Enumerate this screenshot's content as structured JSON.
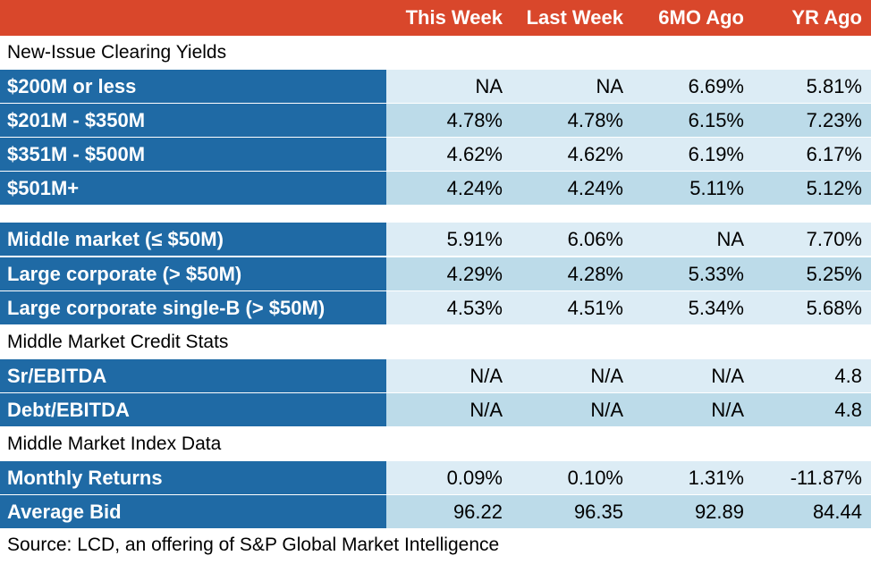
{
  "header": {
    "columns": [
      "This Week",
      "Last Week",
      "6MO Ago",
      "YR Ago"
    ]
  },
  "sections": {
    "new_issue": "New-Issue Clearing Yields",
    "credit_stats": "Middle Market Credit Stats",
    "index_data": "Middle Market Index Data"
  },
  "rows": [
    {
      "label": "$200M or less",
      "values": [
        "NA",
        "NA",
        "6.69%",
        "5.81%"
      ]
    },
    {
      "label": "$201M - $350M",
      "values": [
        "4.78%",
        "4.78%",
        "6.15%",
        "7.23%"
      ]
    },
    {
      "label": "$351M - $500M",
      "values": [
        "4.62%",
        "4.62%",
        "6.19%",
        "6.17%"
      ]
    },
    {
      "label": "$501M+",
      "values": [
        "4.24%",
        "4.24%",
        "5.11%",
        "5.12%"
      ]
    },
    {
      "label": "Middle market (≤ $50M)",
      "values": [
        "5.91%",
        "6.06%",
        "NA",
        "7.70%"
      ]
    },
    {
      "label": "Large corporate (> $50M)",
      "values": [
        "4.29%",
        "4.28%",
        "5.33%",
        "5.25%"
      ]
    },
    {
      "label": "Large corporate single-B (> $50M)",
      "values": [
        "4.53%",
        "4.51%",
        "5.34%",
        "5.68%"
      ]
    },
    {
      "label": "Sr/EBITDA",
      "values": [
        "N/A",
        "N/A",
        "N/A",
        "4.8"
      ]
    },
    {
      "label": "Debt/EBITDA",
      "values": [
        "N/A",
        "N/A",
        "N/A",
        "4.8"
      ]
    },
    {
      "label": "Monthly Returns",
      "values": [
        "0.09%",
        "0.10%",
        "1.31%",
        "-11.87%"
      ]
    },
    {
      "label": "Average Bid",
      "values": [
        "96.22",
        "96.35",
        "92.89",
        "84.44"
      ]
    }
  ],
  "source": "Source: LCD, an offering of S&P Global Market Intelligence",
  "colors": {
    "header_bg": "#d9472b",
    "label_bg": "#1f6aa5",
    "cell_light": "#dcecf5",
    "cell_mid": "#bcdbe9"
  }
}
